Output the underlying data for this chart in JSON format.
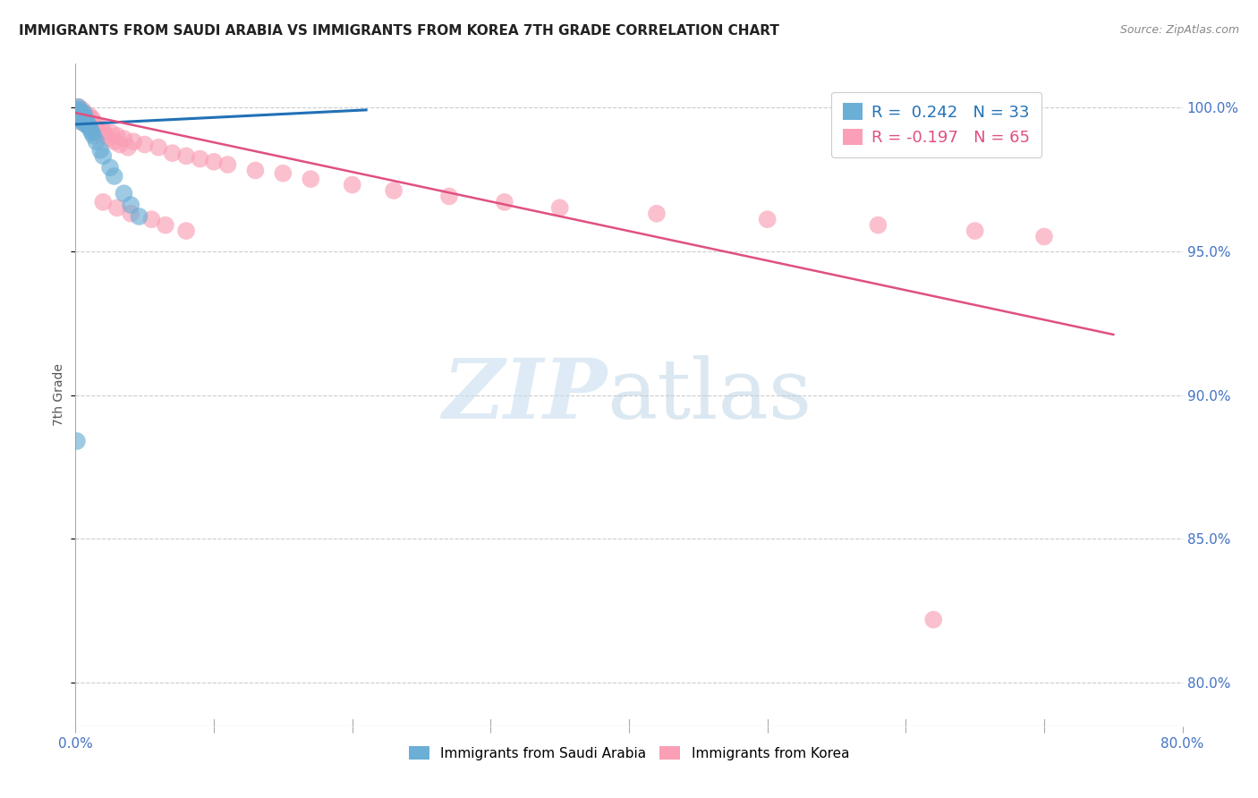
{
  "title": "IMMIGRANTS FROM SAUDI ARABIA VS IMMIGRANTS FROM KOREA 7TH GRADE CORRELATION CHART",
  "source": "Source: ZipAtlas.com",
  "ylabel": "7th Grade",
  "ytick_labels": [
    "80.0%",
    "85.0%",
    "90.0%",
    "95.0%",
    "100.0%"
  ],
  "ytick_values": [
    0.8,
    0.85,
    0.9,
    0.95,
    1.0
  ],
  "xlim": [
    0.0,
    0.8
  ],
  "ylim": [
    0.785,
    1.015
  ],
  "legend_blue": "R =  0.242   N = 33",
  "legend_pink": "R = -0.197   N = 65",
  "blue_color": "#6baed6",
  "pink_color": "#fa9fb5",
  "blue_line_color": "#2171b5",
  "pink_line_color": "#e05080",
  "grid_color": "#cccccc",
  "background_color": "#ffffff",
  "blue_scatter_x": [
    0.001,
    0.001,
    0.002,
    0.002,
    0.002,
    0.003,
    0.003,
    0.003,
    0.004,
    0.004,
    0.004,
    0.005,
    0.005,
    0.006,
    0.006,
    0.006,
    0.007,
    0.007,
    0.008,
    0.009,
    0.01,
    0.011,
    0.012,
    0.013,
    0.015,
    0.018,
    0.02,
    0.025,
    0.028,
    0.035,
    0.04,
    0.046,
    0.001
  ],
  "blue_scatter_y": [
    0.999,
    0.997,
    1.0,
    0.998,
    0.996,
    0.999,
    0.997,
    0.996,
    0.998,
    0.997,
    0.995,
    0.997,
    0.996,
    0.998,
    0.997,
    0.995,
    0.996,
    0.994,
    0.995,
    0.994,
    0.993,
    0.992,
    0.991,
    0.99,
    0.988,
    0.985,
    0.983,
    0.979,
    0.976,
    0.97,
    0.966,
    0.962,
    0.884
  ],
  "pink_scatter_x": [
    0.001,
    0.001,
    0.002,
    0.002,
    0.003,
    0.003,
    0.003,
    0.004,
    0.004,
    0.005,
    0.005,
    0.006,
    0.006,
    0.007,
    0.007,
    0.008,
    0.008,
    0.009,
    0.01,
    0.01,
    0.011,
    0.012,
    0.013,
    0.014,
    0.015,
    0.016,
    0.017,
    0.018,
    0.02,
    0.022,
    0.024,
    0.026,
    0.028,
    0.03,
    0.032,
    0.035,
    0.038,
    0.042,
    0.05,
    0.06,
    0.07,
    0.08,
    0.09,
    0.1,
    0.11,
    0.13,
    0.15,
    0.17,
    0.2,
    0.23,
    0.27,
    0.31,
    0.35,
    0.42,
    0.5,
    0.58,
    0.65,
    0.7,
    0.02,
    0.03,
    0.04,
    0.055,
    0.065,
    0.08,
    0.62
  ],
  "pink_scatter_y": [
    0.998,
    0.996,
    1.0,
    0.997,
    0.999,
    0.997,
    0.995,
    0.998,
    0.996,
    0.999,
    0.997,
    0.998,
    0.996,
    0.997,
    0.995,
    0.997,
    0.994,
    0.996,
    0.997,
    0.995,
    0.994,
    0.996,
    0.995,
    0.993,
    0.994,
    0.992,
    0.991,
    0.993,
    0.992,
    0.99,
    0.989,
    0.991,
    0.988,
    0.99,
    0.987,
    0.989,
    0.986,
    0.988,
    0.987,
    0.986,
    0.984,
    0.983,
    0.982,
    0.981,
    0.98,
    0.978,
    0.977,
    0.975,
    0.973,
    0.971,
    0.969,
    0.967,
    0.965,
    0.963,
    0.961,
    0.959,
    0.957,
    0.955,
    0.967,
    0.965,
    0.963,
    0.961,
    0.959,
    0.957,
    0.822
  ],
  "blue_line_x0": 0.0,
  "blue_line_x1": 0.21,
  "blue_line_y0": 0.994,
  "blue_line_y1": 0.999,
  "pink_line_x0": 0.0,
  "pink_line_x1": 0.75,
  "pink_line_y0": 0.998,
  "pink_line_y1": 0.921
}
